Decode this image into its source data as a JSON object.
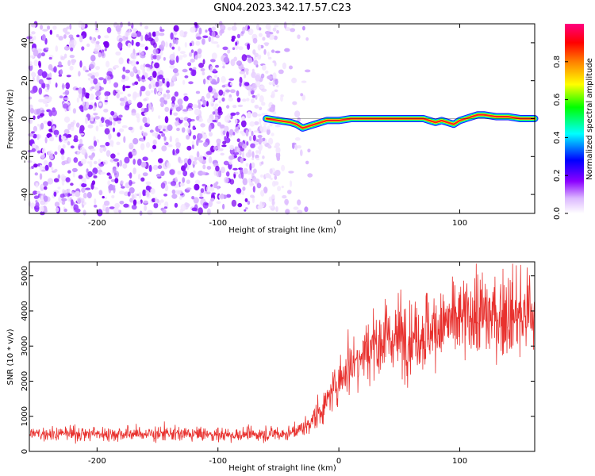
{
  "title": "GN04.2023.342.17.57.C23",
  "chart_data": [
    {
      "type": "heatmap",
      "xlabel": "Height of straight line (km)",
      "ylabel": "Frequency (Hz)",
      "xlim": [
        -256,
        162
      ],
      "ylim": [
        -50,
        50
      ],
      "x_ticks": [
        -200,
        -100,
        0,
        100
      ],
      "y_ticks": [
        -40,
        -20,
        0,
        20,
        40
      ],
      "colorbar": {
        "label": "Normalized spectral amplitude",
        "range": [
          0,
          1
        ],
        "ticks": [
          0.0,
          0.2,
          0.4,
          0.6,
          0.8
        ],
        "colormap": [
          "#ffffff",
          "#e6ccff",
          "#8b00ff",
          "#0000ff",
          "#00ffff",
          "#00ff00",
          "#ffff00",
          "#ff8000",
          "#ff0000",
          "#ff0080"
        ]
      },
      "noise_region_x": [
        -256,
        -50
      ],
      "signal_trace": {
        "x": [
          -60,
          -50,
          -40,
          -35,
          -30,
          -25,
          -20,
          -15,
          -10,
          -5,
          0,
          10,
          20,
          40,
          60,
          70,
          75,
          80,
          85,
          90,
          95,
          100,
          105,
          110,
          115,
          120,
          130,
          140,
          150,
          162
        ],
        "y": [
          0,
          -1,
          -2,
          -3,
          -5,
          -4,
          -3,
          -2,
          -1,
          -1,
          -1,
          0,
          0,
          0,
          0,
          0,
          -1,
          -2,
          -1,
          -2,
          -3,
          -1,
          0,
          1,
          2,
          2,
          1,
          1,
          0,
          0
        ]
      }
    },
    {
      "type": "line",
      "xlabel": "Height of straight line (km)",
      "ylabel": "SNR (10 * v/v)",
      "xlim": [
        -256,
        162
      ],
      "ylim": [
        0,
        5400
      ],
      "x_ticks": [
        -200,
        -100,
        0,
        100
      ],
      "y_ticks": [
        0,
        1000,
        2000,
        3000,
        4000,
        5000
      ],
      "color": "#e8312e",
      "series": [
        {
          "x": [
            -256,
            -200,
            -150,
            -100,
            -60,
            -40,
            -30,
            -20,
            -10,
            0,
            10,
            20,
            30,
            40,
            60,
            80,
            100,
            120,
            140,
            162
          ],
          "y": [
            500,
            500,
            500,
            480,
            480,
            520,
            650,
            950,
            1400,
            2000,
            2500,
            2900,
            3100,
            3200,
            3300,
            3500,
            3750,
            3850,
            3900,
            3900
          ]
        }
      ]
    }
  ]
}
